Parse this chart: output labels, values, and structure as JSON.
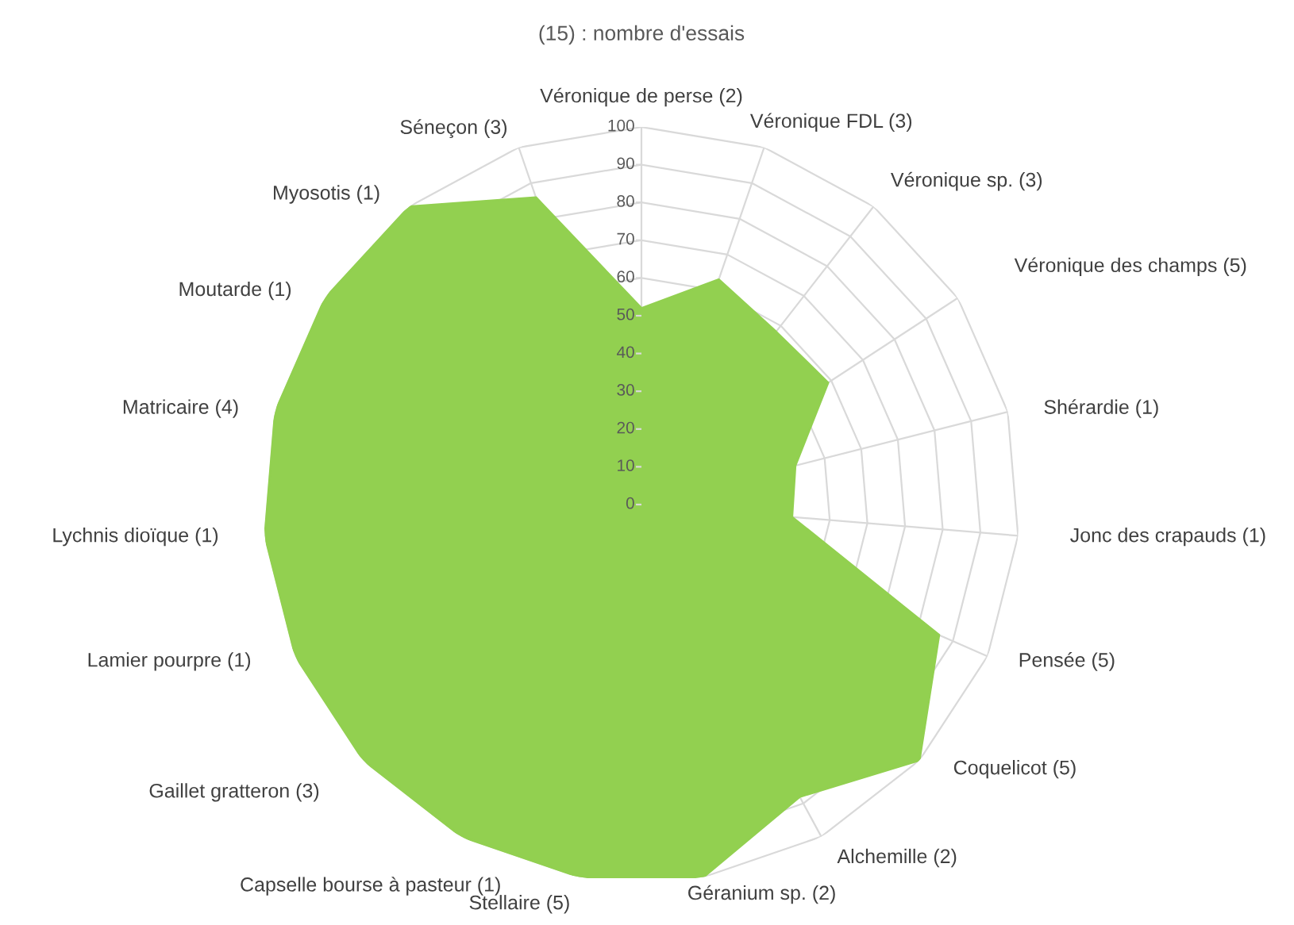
{
  "chart_data": {
    "type": "radar",
    "subtitle": "(15) : nombre d'essais",
    "categories": [
      "Véronique de perse (2)",
      "Véronique FDL (3)",
      "Véronique sp. (3)",
      "Véronique des champs (5)",
      "Shérardie (1)",
      "Jonc des crapauds (1)",
      "Pensée (5)",
      "Coquelicot (5)",
      "Alchemille (2)",
      "Géranium sp. (2)",
      "Stellaire (5)",
      "Capselle bourse à pasteur (1)",
      "Gaillet gratteron (3)",
      "Lamier pourpre (1)",
      "Lychnis dioïque (1)",
      "Matricaire (4)",
      "Moutarde (1)",
      "Myosotis (1)",
      "Séneçon (3)"
    ],
    "series": [
      {
        "color": "#92d050",
        "values": [
          52,
          63,
          58,
          59,
          42,
          40,
          86,
          100,
          88,
          100,
          100,
          100,
          100,
          100,
          100,
          100,
          100,
          100,
          86
        ]
      }
    ],
    "ylim": [
      0,
      100
    ],
    "yticks": [
      0,
      10,
      20,
      30,
      40,
      50,
      60,
      70,
      80,
      90,
      100
    ],
    "grid": true
  }
}
